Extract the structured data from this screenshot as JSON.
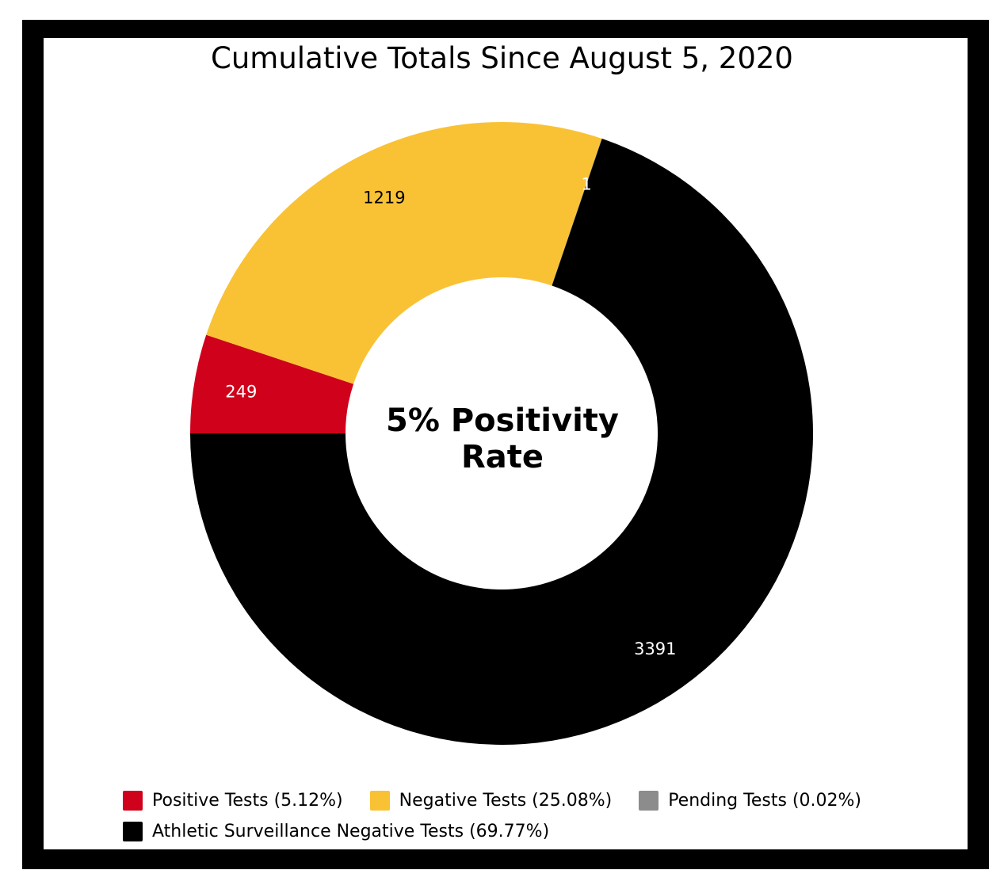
{
  "chart_data": {
    "type": "pie",
    "title": "Cumulative Totals Since August 5, 2020",
    "center_label": [
      "5% Positivity",
      "Rate"
    ],
    "slices": [
      {
        "label": "Positive Tests (5.12%)",
        "value": 249,
        "color": "#d0021b"
      },
      {
        "label": "Negative Tests (25.08%)",
        "value": 1219,
        "color": "#f9c235"
      },
      {
        "label": "Pending Tests (0.02%)",
        "value": 1,
        "color": "#8c8c8c"
      },
      {
        "label": "Athletic Surveillance Negative Tests (69.77%)",
        "value": 3391,
        "color": "#000000"
      }
    ],
    "data_labels": [
      "249",
      "1219",
      "1",
      "3391"
    ],
    "legend_position": "bottom"
  }
}
